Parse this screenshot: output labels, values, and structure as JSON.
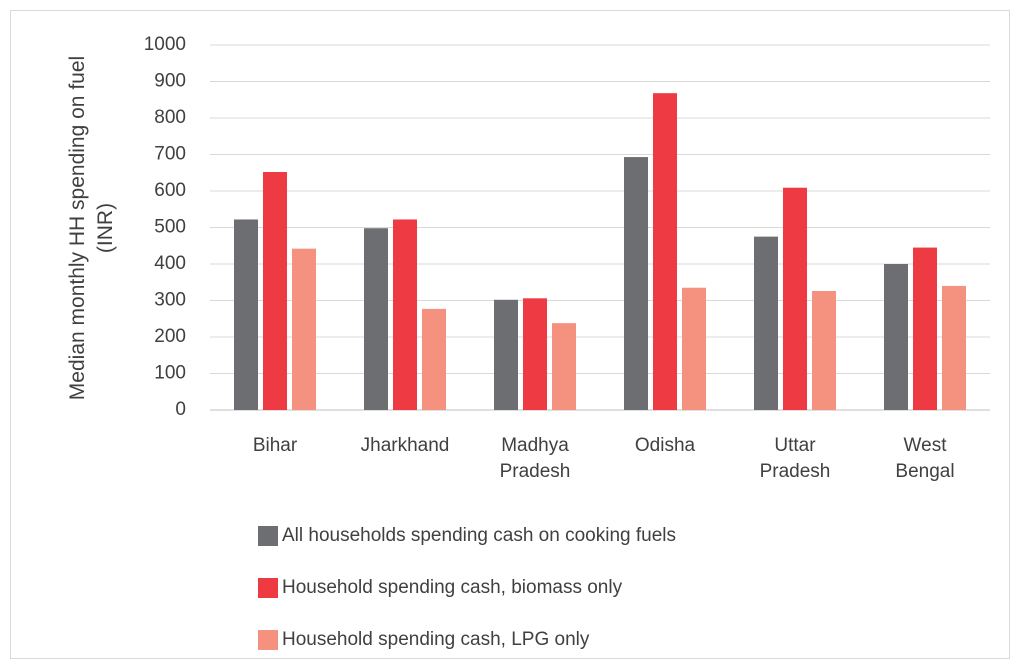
{
  "chart_data": {
    "type": "bar",
    "y_label": "Median monthly HH spending on fuel (INR)",
    "categories": [
      "Bihar",
      "Jharkhand",
      "Madhya Pradesh",
      "Odisha",
      "Uttar Pradesh",
      "West Bengal"
    ],
    "series": [
      {
        "name": "All households spending cash on cooking fuels",
        "color": "#6d6e71",
        "values": [
          522,
          498,
          302,
          693,
          475,
          400
        ]
      },
      {
        "name": "Household spending cash, biomass only",
        "color": "#ee3a43",
        "values": [
          652,
          522,
          306,
          868,
          609,
          445
        ]
      },
      {
        "name": "Household spending cash, LPG only",
        "color": "#f4927f",
        "values": [
          442,
          277,
          238,
          335,
          326,
          340
        ]
      }
    ],
    "ylim": [
      0,
      1000
    ],
    "yticks": [
      0,
      100,
      200,
      300,
      400,
      500,
      600,
      700,
      800,
      900,
      1000
    ],
    "grid": true,
    "legend": "bottom"
  }
}
